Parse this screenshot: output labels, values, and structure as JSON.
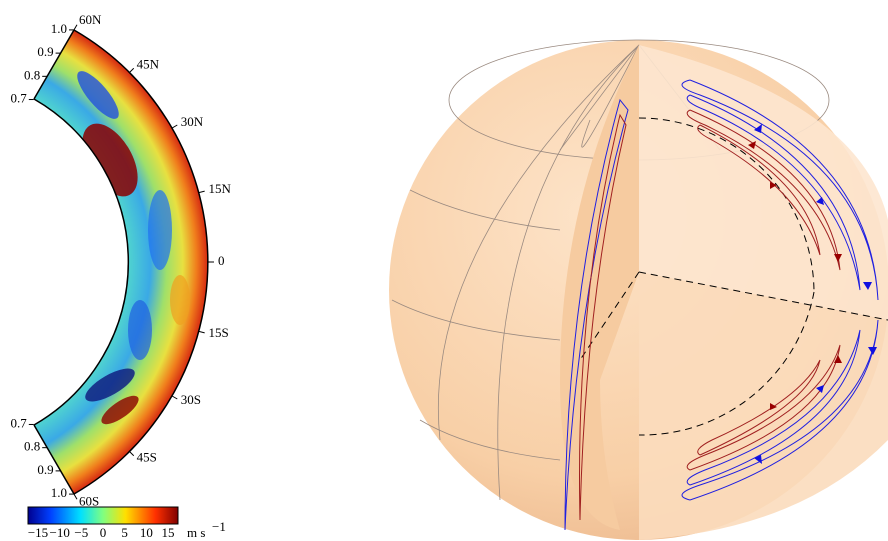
{
  "left_panel": {
    "radius_labels_north": [
      "1.0",
      "0.9",
      "0.8",
      "0.7"
    ],
    "radius_labels_south": [
      "0.7",
      "0.8",
      "0.9",
      "1.0"
    ],
    "latitude_labels": [
      "60N",
      "45N",
      "30N",
      "15N",
      "0",
      "15S",
      "30S",
      "45S",
      "60S"
    ],
    "colorbar": {
      "ticks": [
        "−15",
        "−10",
        "−5",
        "0",
        "5",
        "10",
        "15"
      ],
      "unit": "m s",
      "unit_exponent": "−1"
    }
  }
}
